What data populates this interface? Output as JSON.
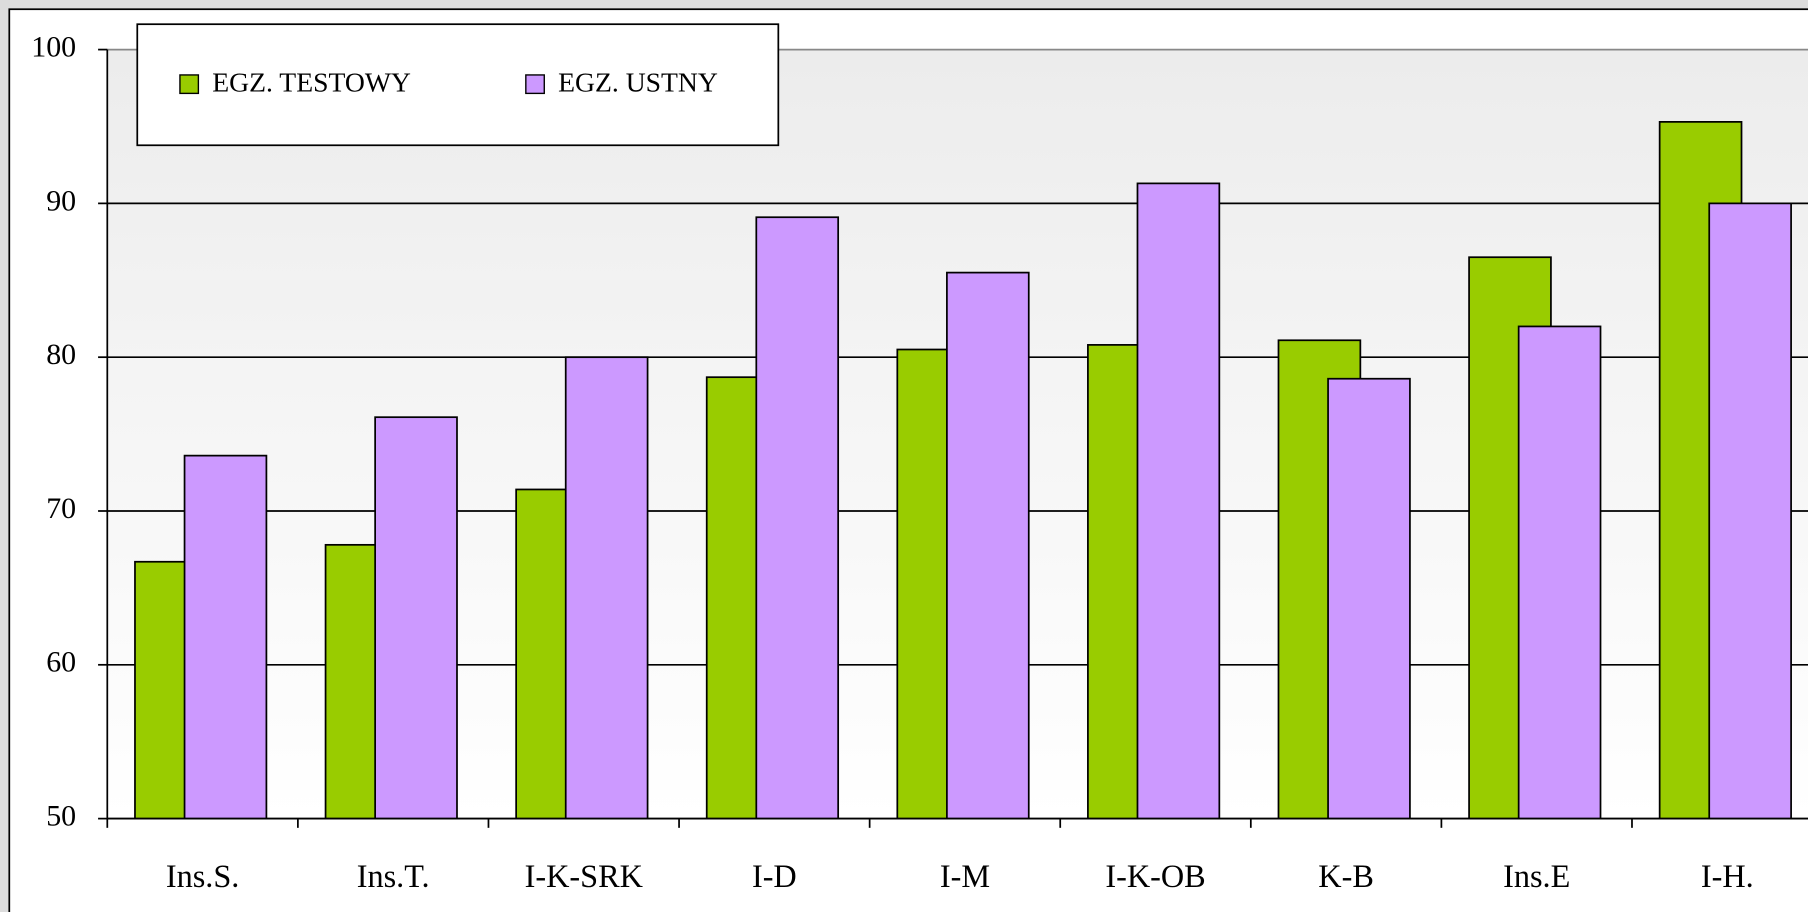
{
  "chart_data": {
    "type": "bar",
    "categories": [
      "Ins.S.",
      "Ins.T.",
      "I-K-SRK",
      "I-D",
      "I-M",
      "I-K-OB",
      "K-B",
      "Ins.E",
      "I-H."
    ],
    "series": [
      {
        "name": "EGZ. TESTOWY",
        "color": "#99cc00",
        "values": [
          66.7,
          67.8,
          71.4,
          78.7,
          80.5,
          80.8,
          81.1,
          86.5,
          95.3
        ]
      },
      {
        "name": "EGZ. USTNY",
        "color": "#cc99ff",
        "values": [
          73.6,
          76.1,
          80.0,
          89.1,
          85.5,
          91.3,
          78.6,
          82.0,
          90.0
        ]
      }
    ],
    "ylim": [
      50,
      100
    ],
    "yticks": [
      50,
      60,
      70,
      80,
      90,
      100
    ],
    "grid": true,
    "legend": "top-left"
  }
}
